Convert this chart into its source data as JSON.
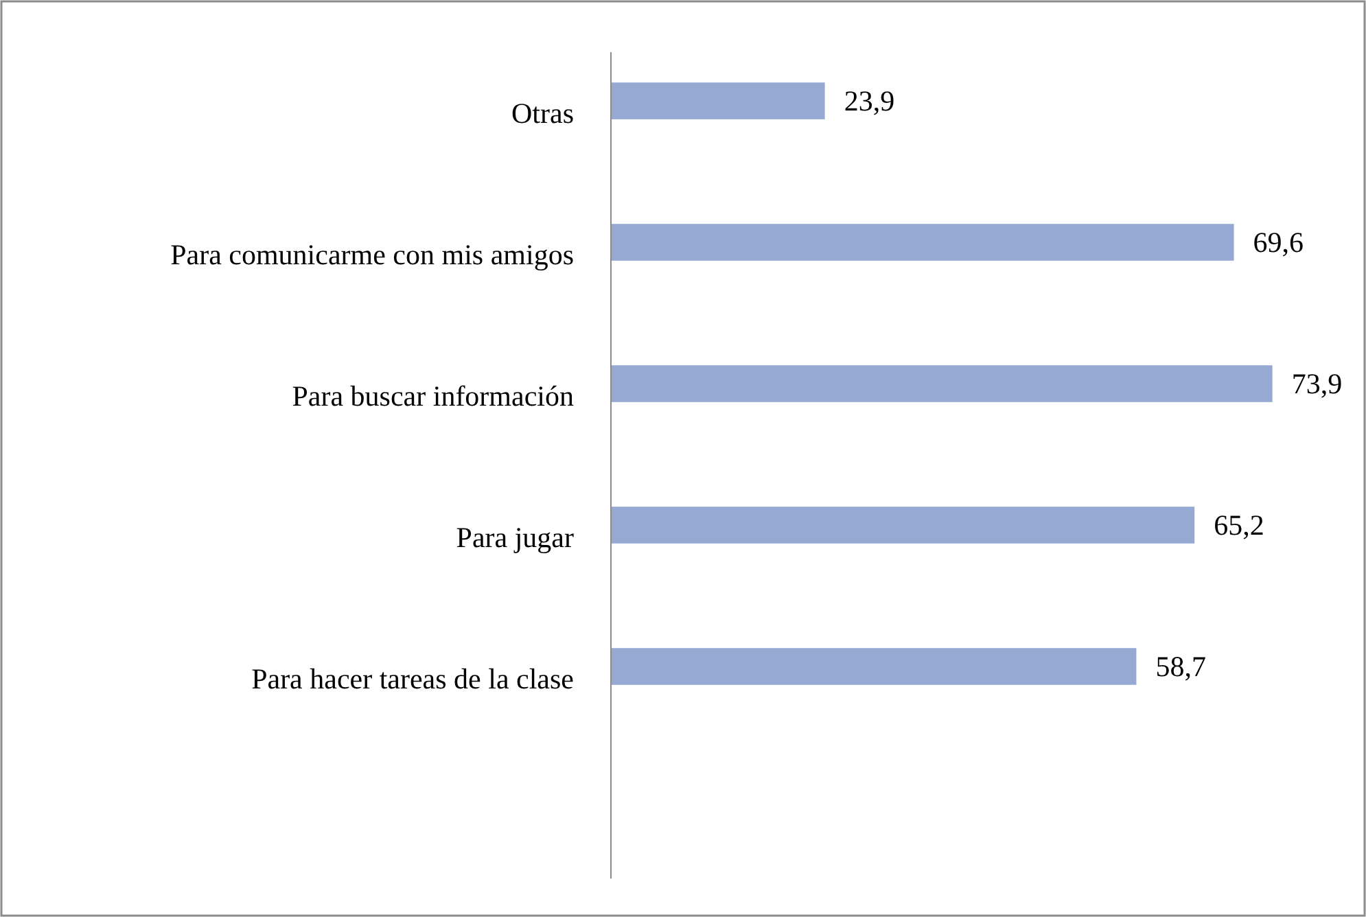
{
  "chart_data": {
    "type": "bar",
    "orientation": "horizontal",
    "relative": false,
    "categories": [
      "Otras",
      "Para comunicarme con mis amigos",
      "Para buscar información",
      "Para jugar",
      "Para hacer tareas de la clase",
      null
    ],
    "values": [
      23.9,
      69.6,
      73.9,
      65.2,
      58.7,
      null
    ],
    "value_labels": [
      "23,9",
      "69,6",
      "73,9",
      "65,2",
      "58,7",
      null
    ],
    "color": "#95a9d3"
  }
}
